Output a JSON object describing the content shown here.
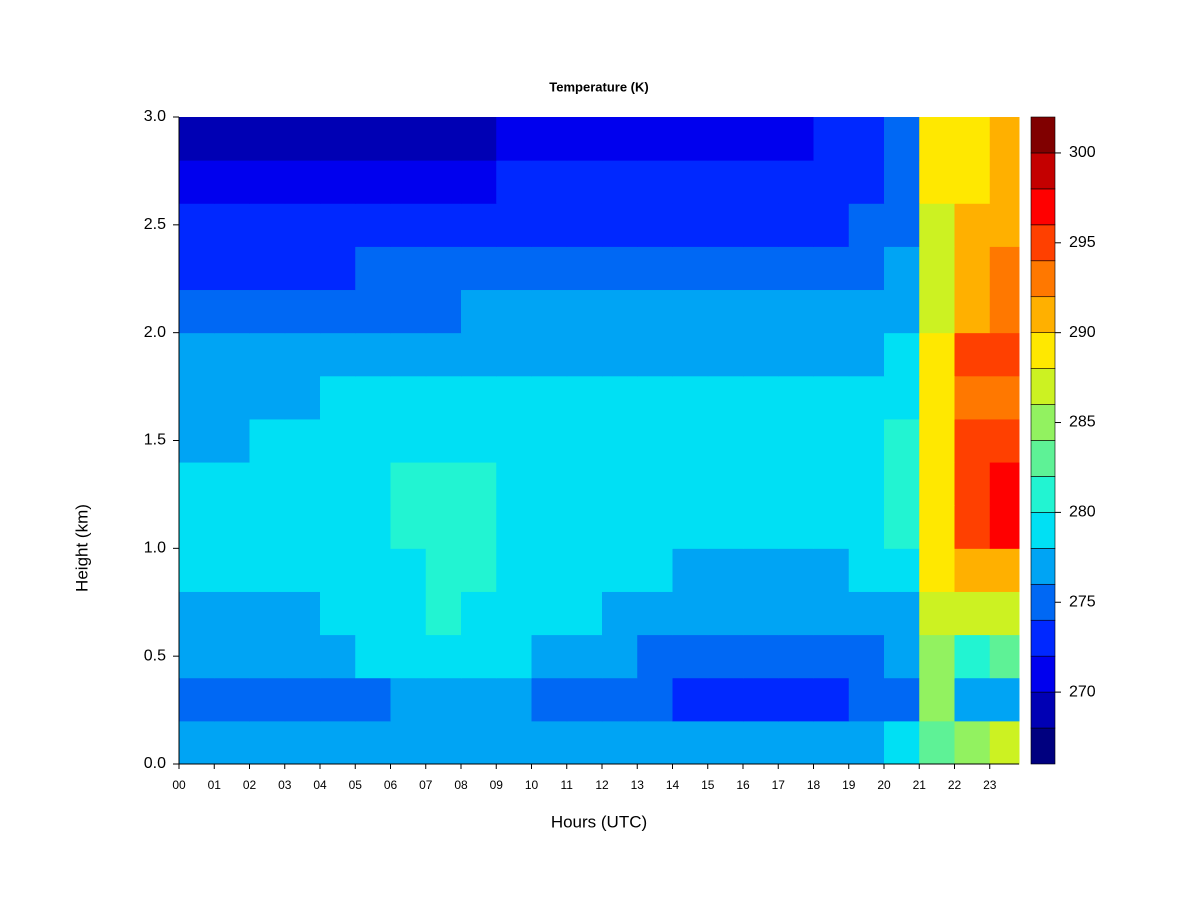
{
  "chart_data": {
    "type": "heatmap",
    "title": "Temperature (K)",
    "x_label": "Hours (UTC)",
    "y_label": "Height (km)",
    "x": [
      0,
      1,
      2,
      3,
      4,
      5,
      6,
      7,
      8,
      9,
      10,
      11,
      12,
      13,
      14,
      15,
      16,
      17,
      18,
      19,
      20,
      21,
      22,
      23
    ],
    "y": [
      0,
      0.2,
      0.4,
      0.6,
      0.8,
      1.0,
      1.2,
      1.4,
      1.6,
      1.8,
      2.0,
      2.2,
      2.4,
      2.6,
      2.8
    ],
    "z": [
      [
        277,
        277,
        277,
        277,
        277,
        277,
        277,
        277,
        277,
        277,
        277,
        276,
        276,
        276,
        276,
        276,
        276,
        276,
        276,
        277,
        278,
        283,
        285,
        287
      ],
      [
        275,
        275,
        274,
        274,
        275,
        275,
        276,
        277,
        277,
        276,
        275,
        274,
        274,
        274,
        273,
        273,
        273,
        273,
        273,
        274,
        275,
        284,
        277,
        277
      ],
      [
        276,
        276,
        276,
        276,
        277,
        279,
        279,
        279,
        279,
        278,
        277,
        277,
        276,
        275,
        275,
        274,
        274,
        274,
        274,
        275,
        276,
        285,
        281,
        282
      ],
      [
        277,
        277,
        277,
        277,
        278,
        279,
        279,
        280,
        279,
        279,
        278,
        278,
        277,
        276,
        276,
        276,
        276,
        276,
        276,
        276,
        277,
        287,
        287,
        286
      ],
      [
        278,
        278,
        278,
        279,
        279,
        279,
        279,
        280,
        280,
        279,
        279,
        279,
        278,
        278,
        277,
        277,
        277,
        277,
        277,
        278,
        279,
        288,
        290,
        291
      ],
      [
        278,
        278,
        279,
        279,
        279,
        279,
        280,
        280,
        280,
        279,
        279,
        279,
        279,
        279,
        278,
        278,
        278,
        278,
        279,
        279,
        280,
        289,
        295,
        297
      ],
      [
        278,
        279,
        279,
        279,
        279,
        279,
        280,
        280,
        280,
        279,
        279,
        279,
        279,
        279,
        279,
        279,
        279,
        279,
        279,
        279,
        280,
        289,
        295,
        297
      ],
      [
        277,
        277,
        279,
        279,
        279,
        279,
        279,
        279,
        279,
        279,
        279,
        279,
        279,
        279,
        279,
        279,
        279,
        279,
        279,
        279,
        280,
        289,
        294,
        294
      ],
      [
        277,
        277,
        277,
        277,
        278,
        278,
        278,
        279,
        279,
        279,
        279,
        278,
        278,
        278,
        278,
        278,
        278,
        278,
        278,
        279,
        279,
        288,
        292,
        293
      ],
      [
        276,
        276,
        276,
        277,
        277,
        277,
        277,
        277,
        277,
        277,
        277,
        277,
        277,
        277,
        277,
        277,
        277,
        277,
        277,
        277,
        278,
        288,
        294,
        295
      ],
      [
        275,
        275,
        275,
        275,
        275,
        275,
        275,
        275,
        276,
        276,
        276,
        276,
        276,
        276,
        276,
        276,
        276,
        276,
        276,
        276,
        277,
        287,
        291,
        292
      ],
      [
        273,
        273,
        273,
        273,
        273,
        274,
        274,
        274,
        274,
        274,
        274,
        274,
        274,
        274,
        274,
        274,
        274,
        274,
        274,
        274,
        276,
        287,
        290,
        292
      ],
      [
        272,
        272,
        272,
        272,
        272,
        272,
        272,
        273,
        273,
        273,
        273,
        273,
        273,
        273,
        273,
        273,
        273,
        273,
        273,
        274,
        275,
        287,
        290,
        291
      ],
      [
        271,
        271,
        271,
        271,
        271,
        271,
        271,
        271,
        271,
        272,
        272,
        272,
        272,
        272,
        272,
        272,
        272,
        272,
        272,
        273,
        275,
        288,
        289,
        291
      ],
      [
        269,
        269,
        269,
        269,
        269,
        269,
        269,
        269,
        269,
        270,
        271,
        271,
        271,
        271,
        271,
        271,
        271,
        271,
        272,
        272,
        274,
        288,
        289,
        291
      ]
    ],
    "xlim": [
      0,
      23.83
    ],
    "ylim": [
      0,
      3
    ],
    "xticks": [
      {
        "value": 0,
        "label": "00"
      },
      {
        "value": 1,
        "label": "01"
      },
      {
        "value": 2,
        "label": "02"
      },
      {
        "value": 3,
        "label": "03"
      },
      {
        "value": 4,
        "label": "04"
      },
      {
        "value": 5,
        "label": "05"
      },
      {
        "value": 6,
        "label": "06"
      },
      {
        "value": 7,
        "label": "07"
      },
      {
        "value": 8,
        "label": "08"
      },
      {
        "value": 9,
        "label": "09"
      },
      10,
      11,
      12,
      13,
      14,
      15,
      16,
      17,
      18,
      19,
      20,
      21,
      22,
      23
    ],
    "yticks": [
      {
        "value": 0,
        "label": "0.0"
      },
      0.5,
      {
        "value": 1,
        "label": "1.0"
      },
      1.5,
      {
        "value": 2,
        "label": "2.0"
      },
      2.5,
      {
        "value": 3,
        "label": "3.0"
      }
    ],
    "levels": [
      266,
      268,
      270,
      272,
      274,
      276,
      278,
      280,
      282,
      284,
      286,
      288,
      290,
      292,
      294,
      296,
      298,
      300,
      302
    ],
    "colors": [
      "#00007f",
      "#0000b4",
      "#0000ee",
      "#0028ff",
      "#0068f4",
      "#00a4f4",
      "#00e0f4",
      "#22f4d2",
      "#5ef296",
      "#92f260",
      "#ccf222",
      "#ffe800",
      "#ffb000",
      "#ff7800",
      "#ff4000",
      "#ff0000",
      "#c40000",
      "#800000"
    ],
    "colorbar_ticks": [
      270,
      275,
      280,
      285,
      290,
      295,
      300
    ]
  }
}
